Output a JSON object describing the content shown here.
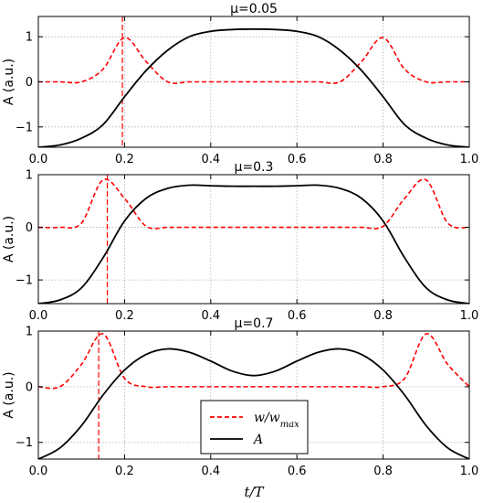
{
  "colors": {
    "w_line": "#ff0000",
    "a_line": "#000000",
    "grid": "#b0b0b0"
  },
  "xlabel": "t/T",
  "legend": {
    "position": "lower center (bottom panel)",
    "entries": [
      {
        "label": "w/w_max",
        "style": "dashed",
        "color": "#ff0000"
      },
      {
        "label": "A",
        "style": "solid",
        "color": "#000000"
      }
    ]
  },
  "chart_data": [
    {
      "type": "line",
      "title": "μ=0.05",
      "ylabel": "A (a.u.)",
      "xlim": [
        0,
        1
      ],
      "ylim": [
        -1.45,
        1.45
      ],
      "grid": true,
      "x_ticks": [
        "0.0",
        "0.2",
        "0.4",
        "0.6",
        "0.8",
        "1.0"
      ],
      "y_ticks": [
        "−1",
        "0",
        "1"
      ],
      "x_tick_values": [
        0,
        0.2,
        0.4,
        0.6,
        0.8,
        1.0
      ],
      "y_tick_values": [
        -1,
        0,
        1
      ],
      "vline_x": 0.195,
      "x": [
        0,
        0.05,
        0.1,
        0.15,
        0.2,
        0.25,
        0.3,
        0.35,
        0.4,
        0.45,
        0.5,
        0.55,
        0.6,
        0.65,
        0.7,
        0.75,
        0.8,
        0.85,
        0.9,
        0.95,
        1.0
      ],
      "series": [
        {
          "name": "w/w_max",
          "style": "dashed",
          "values": [
            0,
            0,
            0,
            0.28,
            0.98,
            0.45,
            0,
            0,
            0,
            0,
            0,
            0,
            0,
            0,
            0,
            0.45,
            0.98,
            0.28,
            0,
            0,
            0
          ]
        },
        {
          "name": "A",
          "style": "solid",
          "values": [
            -1.45,
            -1.4,
            -1.25,
            -0.95,
            -0.33,
            0.25,
            0.7,
            1.0,
            1.12,
            1.16,
            1.17,
            1.16,
            1.12,
            1.0,
            0.7,
            0.25,
            -0.33,
            -0.95,
            -1.25,
            -1.4,
            -1.45
          ]
        }
      ]
    },
    {
      "type": "line",
      "title": "μ=0.3",
      "ylabel": "A (a.u.)",
      "xlim": [
        0,
        1
      ],
      "ylim": [
        -1.45,
        1.0
      ],
      "grid": true,
      "x_ticks": [
        "0.0",
        "0.2",
        "0.4",
        "0.6",
        "0.8",
        "1.0"
      ],
      "y_ticks": [
        "−1",
        "0",
        "1"
      ],
      "x_tick_values": [
        0,
        0.2,
        0.4,
        0.6,
        0.8,
        1.0
      ],
      "y_tick_values": [
        -1,
        0,
        1
      ],
      "vline_x": 0.16,
      "x": [
        0,
        0.05,
        0.1,
        0.15,
        0.2,
        0.25,
        0.3,
        0.35,
        0.4,
        0.45,
        0.5,
        0.55,
        0.6,
        0.65,
        0.7,
        0.75,
        0.8,
        0.85,
        0.9,
        0.95,
        1.0
      ],
      "series": [
        {
          "name": "w/w_max",
          "style": "dashed",
          "values": [
            0,
            0,
            0.08,
            0.9,
            0.55,
            0.02,
            0,
            0,
            0,
            0,
            0,
            0,
            0,
            0,
            0,
            0,
            0.02,
            0.55,
            0.9,
            0.08,
            0
          ]
        },
        {
          "name": "A",
          "style": "solid",
          "values": [
            -1.45,
            -1.38,
            -1.15,
            -0.58,
            0.12,
            0.55,
            0.74,
            0.8,
            0.79,
            0.78,
            0.78,
            0.78,
            0.79,
            0.8,
            0.74,
            0.55,
            0.12,
            -0.58,
            -1.15,
            -1.38,
            -1.45
          ]
        }
      ]
    },
    {
      "type": "line",
      "title": "μ=0.7",
      "ylabel": "A (a.u.)",
      "xlim": [
        0,
        1
      ],
      "ylim": [
        -1.3,
        1.0
      ],
      "grid": true,
      "x_ticks": [
        "0.0",
        "0.2",
        "0.4",
        "0.6",
        "0.8",
        "1.0"
      ],
      "y_ticks": [
        "−1",
        "0",
        "1"
      ],
      "x_tick_values": [
        0,
        0.2,
        0.4,
        0.6,
        0.8,
        1.0
      ],
      "y_tick_values": [
        -1,
        0,
        1
      ],
      "vline_x": 0.14,
      "x": [
        0,
        0.05,
        0.1,
        0.15,
        0.2,
        0.25,
        0.3,
        0.35,
        0.4,
        0.45,
        0.5,
        0.55,
        0.6,
        0.65,
        0.7,
        0.75,
        0.8,
        0.85,
        0.9,
        0.95,
        1.0
      ],
      "series": [
        {
          "name": "w/w_max",
          "style": "dashed",
          "values": [
            0,
            0,
            0.4,
            0.95,
            0.15,
            0,
            0,
            0,
            0,
            0,
            0,
            0,
            0,
            0,
            0,
            0,
            0,
            0.15,
            0.95,
            0.4,
            0
          ]
        },
        {
          "name": "A",
          "style": "solid",
          "values": [
            -1.3,
            -1.1,
            -0.7,
            -0.15,
            0.3,
            0.58,
            0.68,
            0.62,
            0.46,
            0.28,
            0.2,
            0.28,
            0.46,
            0.62,
            0.68,
            0.58,
            0.3,
            -0.15,
            -0.7,
            -1.1,
            -1.3
          ]
        }
      ]
    }
  ]
}
